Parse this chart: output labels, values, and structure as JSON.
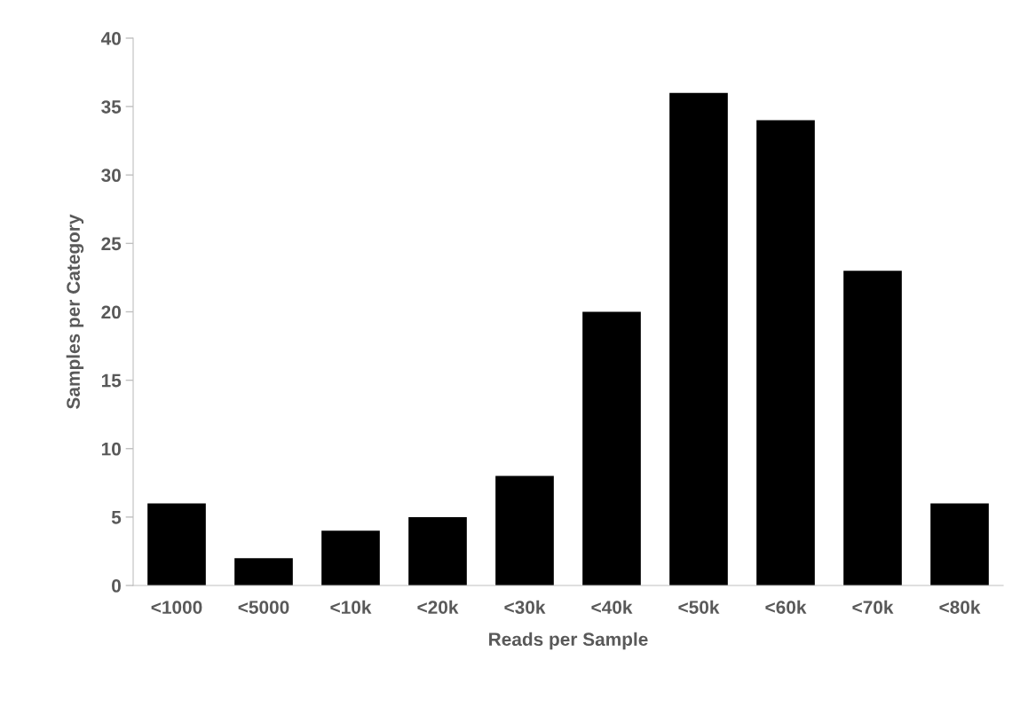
{
  "chart_data": {
    "type": "bar",
    "xlabel": "Reads per Sample",
    "ylabel": "Samples per Category",
    "categories": [
      "<1000",
      "<5000",
      "<10k",
      "<20k",
      "<30k",
      "<40k",
      "<50k",
      "<60k",
      "<70k",
      "<80k"
    ],
    "values": [
      6,
      2,
      4,
      5,
      8,
      20,
      36,
      34,
      23,
      6
    ],
    "color": "#000000",
    "ylim": [
      0,
      40
    ],
    "yticks": [
      0,
      5,
      10,
      15,
      20,
      25,
      30,
      35,
      40
    ],
    "grid": false,
    "legend": false
  }
}
